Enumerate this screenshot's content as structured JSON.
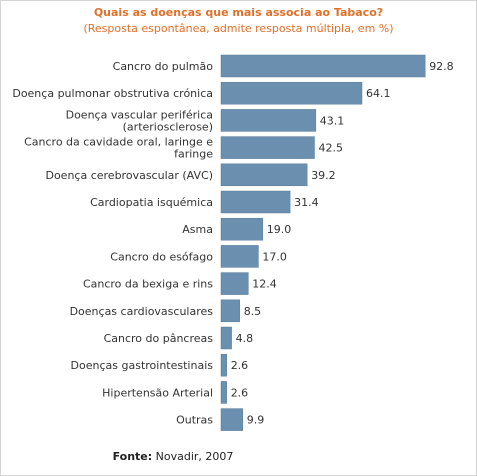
{
  "colors": {
    "title": "#e0702a",
    "bar": "#6b8fae",
    "bar_border": "#5a7d9c",
    "text": "#333333"
  },
  "source": {
    "label": "Fonte:",
    "value": "Novadir, 2007"
  },
  "chart_data": {
    "type": "bar",
    "orientation": "horizontal",
    "title": "Quais as doenças que mais associa ao Tabaco?",
    "subtitle": "(Resposta espontânea, admite resposta múltipla, em %)",
    "categories": [
      [
        "Cancro do pulmão"
      ],
      [
        "Doença pulmonar obstrutiva crónica"
      ],
      [
        "Doença vascular periférica",
        "(arteriosclerose)"
      ],
      [
        "Cancro da cavidade oral, laringe e",
        "faringe"
      ],
      [
        "Doença cerebrovascular (AVC)"
      ],
      [
        "Cardiopatia isquémica"
      ],
      [
        "Asma"
      ],
      [
        "Cancro do esófago"
      ],
      [
        "Cancro da bexiga e rins"
      ],
      [
        "Doenças cardiovasculares"
      ],
      [
        "Cancro do pâncreas"
      ],
      [
        "Doenças gastrointestinais"
      ],
      [
        "Hipertensão Arterial"
      ],
      [
        "Outras"
      ]
    ],
    "values": [
      92.8,
      64.1,
      43.1,
      42.5,
      39.2,
      31.4,
      19.0,
      17.0,
      12.4,
      8.5,
      4.8,
      2.6,
      2.6,
      9.9
    ],
    "value_labels": [
      "92.8",
      "64.1",
      "43.1",
      "42.5",
      "39.2",
      "31.4",
      "19.0",
      "17.0",
      "12.4",
      "8.5",
      "4.8",
      "2.6",
      "2.6",
      "9.9"
    ],
    "xlim": [
      0,
      100
    ],
    "grid": false,
    "legend": "none"
  }
}
